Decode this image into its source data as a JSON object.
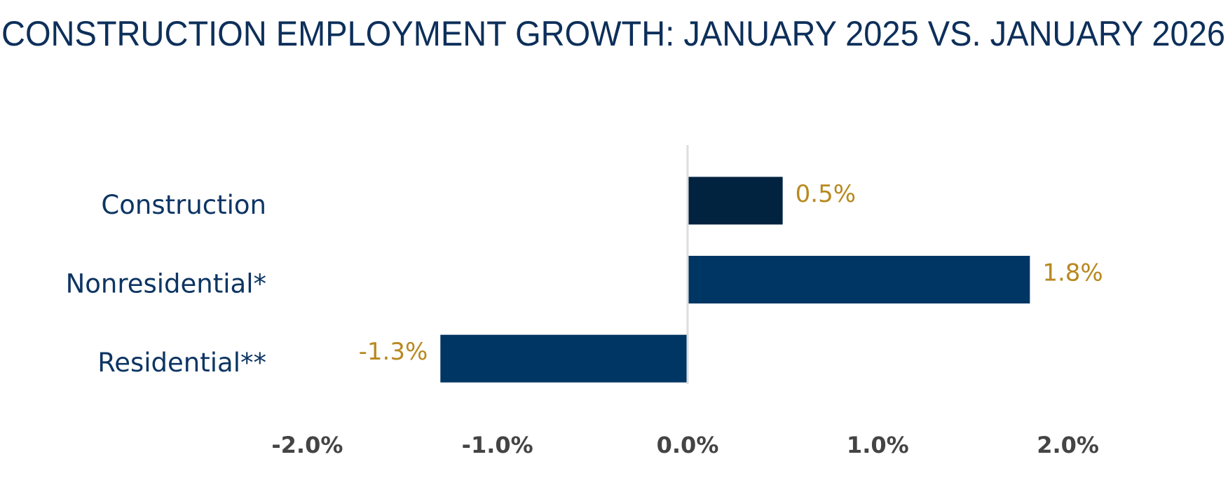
{
  "chart_data": {
    "type": "bar",
    "orientation": "horizontal",
    "title": "CONSTRUCTION EMPLOYMENT GROWTH: JANUARY 2025 VS. JANUARY 2026",
    "categories": [
      "Construction",
      "Nonresidential*",
      "Residential**"
    ],
    "values": [
      0.5,
      1.8,
      -1.3
    ],
    "value_labels": [
      "0.5%",
      "1.8%",
      "-1.3%"
    ],
    "colors": [
      "#012340",
      "#003663",
      "#003663"
    ],
    "xlim": [
      -2.3,
      2.3
    ],
    "xticks": [
      {
        "value": -2,
        "label": "-2.0%"
      },
      {
        "value": -1,
        "label": "-1.0%"
      },
      {
        "value": 0,
        "label": "0.0%"
      },
      {
        "value": 1,
        "label": "1.0%"
      },
      {
        "value": 2,
        "label": "2.0%"
      }
    ],
    "grid": false
  }
}
